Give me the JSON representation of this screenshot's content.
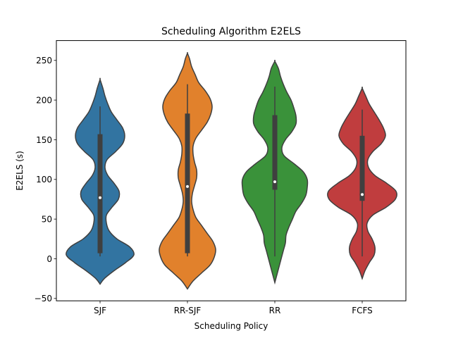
{
  "chart_data": {
    "type": "violin",
    "title": "Scheduling Algorithm E2ELS",
    "xlabel": "Scheduling Policy",
    "ylabel": "E2ELS (s)",
    "ylim": [
      -53,
      275
    ],
    "yticks": [
      -50,
      0,
      50,
      100,
      150,
      200,
      250
    ],
    "grid": false,
    "categories": [
      "SJF",
      "RR-SJF",
      "RR",
      "FCFS"
    ],
    "series": [
      {
        "category": "SJF",
        "color": "#3274a1",
        "min": 3,
        "q1": 7,
        "median": 77,
        "q3": 157,
        "max": 192,
        "density": [
          [
            -32,
            0
          ],
          [
            -25,
            6
          ],
          [
            -15,
            20
          ],
          [
            -5,
            36
          ],
          [
            5,
            48
          ],
          [
            15,
            42
          ],
          [
            25,
            24
          ],
          [
            35,
            13
          ],
          [
            45,
            9
          ],
          [
            55,
            9
          ],
          [
            65,
            17
          ],
          [
            75,
            26
          ],
          [
            85,
            27
          ],
          [
            95,
            20
          ],
          [
            105,
            11
          ],
          [
            115,
            7
          ],
          [
            125,
            10
          ],
          [
            135,
            22
          ],
          [
            145,
            32
          ],
          [
            155,
            35
          ],
          [
            165,
            32
          ],
          [
            175,
            24
          ],
          [
            185,
            16
          ],
          [
            195,
            11
          ],
          [
            205,
            7
          ],
          [
            215,
            4
          ],
          [
            226,
            0
          ]
        ]
      },
      {
        "category": "RR-SJF",
        "color": "#e1812c",
        "min": 3,
        "q1": 7,
        "median": 91,
        "q3": 183,
        "max": 220,
        "density": [
          [
            -38,
            0
          ],
          [
            -28,
            8
          ],
          [
            -18,
            20
          ],
          [
            -8,
            32
          ],
          [
            2,
            38
          ],
          [
            12,
            40
          ],
          [
            22,
            36
          ],
          [
            32,
            28
          ],
          [
            42,
            20
          ],
          [
            52,
            12
          ],
          [
            62,
            8
          ],
          [
            72,
            6
          ],
          [
            82,
            7
          ],
          [
            92,
            10
          ],
          [
            102,
            13
          ],
          [
            112,
            13
          ],
          [
            122,
            10
          ],
          [
            132,
            8
          ],
          [
            142,
            8
          ],
          [
            152,
            12
          ],
          [
            162,
            20
          ],
          [
            172,
            28
          ],
          [
            182,
            33
          ],
          [
            192,
            35
          ],
          [
            202,
            32
          ],
          [
            212,
            25
          ],
          [
            222,
            16
          ],
          [
            232,
            11
          ],
          [
            242,
            6
          ],
          [
            252,
            3
          ],
          [
            259,
            0
          ]
        ]
      },
      {
        "category": "RR",
        "color": "#3a923a",
        "min": 3,
        "q1": 87,
        "median": 97,
        "q3": 181,
        "max": 217,
        "density": [
          [
            -30,
            0
          ],
          [
            -20,
            3
          ],
          [
            -10,
            6
          ],
          [
            0,
            9
          ],
          [
            10,
            12
          ],
          [
            20,
            15
          ],
          [
            30,
            16
          ],
          [
            40,
            20
          ],
          [
            50,
            25
          ],
          [
            60,
            30
          ],
          [
            70,
            38
          ],
          [
            80,
            44
          ],
          [
            90,
            46
          ],
          [
            100,
            46
          ],
          [
            110,
            40
          ],
          [
            120,
            27
          ],
          [
            130,
            13
          ],
          [
            140,
            10
          ],
          [
            150,
            15
          ],
          [
            160,
            24
          ],
          [
            170,
            30
          ],
          [
            180,
            30
          ],
          [
            190,
            27
          ],
          [
            200,
            23
          ],
          [
            210,
            17
          ],
          [
            220,
            12
          ],
          [
            230,
            8
          ],
          [
            240,
            5
          ],
          [
            249,
            0
          ]
        ]
      },
      {
        "category": "FCFS",
        "color": "#c03d3e",
        "min": 3,
        "q1": 73,
        "median": 81,
        "q3": 155,
        "max": 188,
        "density": [
          [
            -25,
            0
          ],
          [
            -15,
            4
          ],
          [
            -5,
            10
          ],
          [
            5,
            17
          ],
          [
            15,
            18
          ],
          [
            25,
            14
          ],
          [
            35,
            8
          ],
          [
            45,
            7
          ],
          [
            55,
            15
          ],
          [
            65,
            34
          ],
          [
            75,
            47
          ],
          [
            85,
            48
          ],
          [
            95,
            35
          ],
          [
            105,
            18
          ],
          [
            115,
            9
          ],
          [
            125,
            8
          ],
          [
            135,
            15
          ],
          [
            145,
            27
          ],
          [
            155,
            33
          ],
          [
            165,
            30
          ],
          [
            175,
            24
          ],
          [
            185,
            17
          ],
          [
            195,
            10
          ],
          [
            205,
            5
          ],
          [
            215,
            0
          ]
        ]
      }
    ]
  }
}
